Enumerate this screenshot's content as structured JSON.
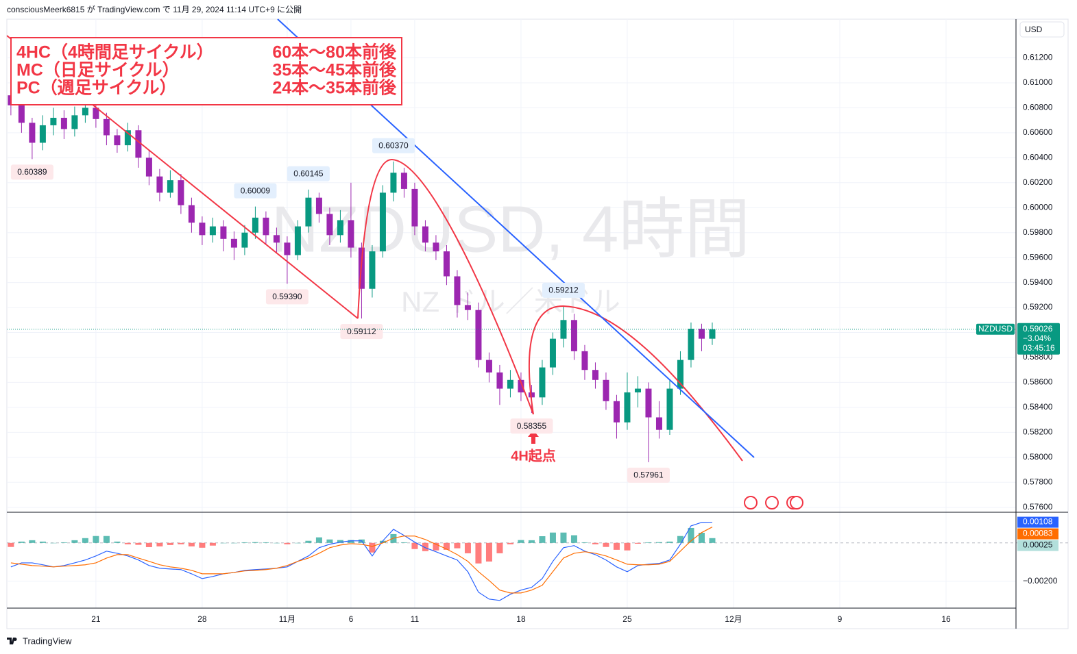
{
  "header": {
    "title": "consciousMeerk6815 が TradingView.com で 11月 29, 2024 11:14 UTC+9 に公開"
  },
  "footer": {
    "brand": "TradingView"
  },
  "chart_data": [
    {
      "type": "candlestick",
      "title": "NZDUSD, 4時間",
      "subtitle": "NZ ドル／米ドル",
      "currency": "USD",
      "colors": {
        "up": "#089981",
        "down": "#9c27b0"
      },
      "x": [
        -4,
        -3.5,
        -3,
        -2.5,
        -2,
        -1.5,
        -1,
        -0.5,
        0,
        0.5,
        1,
        1.5,
        2,
        2.5,
        3,
        3.5,
        4,
        4.5,
        5,
        5.5,
        6,
        6.5,
        7,
        7.5,
        8,
        8.5,
        9,
        9.5,
        10,
        10.5,
        11,
        11.5,
        12,
        12.5,
        13,
        13.5,
        14,
        14.5,
        15,
        15.5,
        16,
        16.5,
        17,
        17.5,
        18,
        18.5,
        19,
        19.5,
        20,
        20.5,
        21,
        21.5,
        22,
        22.5,
        23,
        23.5,
        24,
        24.5,
        25,
        25.5,
        26,
        26.5,
        27,
        27.5,
        28,
        28.5,
        29
      ],
      "open": [
        0.609,
        0.6082,
        0.6068,
        0.6052,
        0.6066,
        0.6072,
        0.6063,
        0.6074,
        0.608,
        0.6071,
        0.6058,
        0.605,
        0.6062,
        0.604,
        0.6025,
        0.6012,
        0.6022,
        0.6002,
        0.5988,
        0.5978,
        0.5985,
        0.5975,
        0.5968,
        0.598,
        0.5992,
        0.5978,
        0.5972,
        0.5962,
        0.5985,
        0.6008,
        0.5995,
        0.5978,
        0.599,
        0.5968,
        0.5935,
        0.5965,
        0.6012,
        0.6028,
        0.6015,
        0.5985,
        0.5972,
        0.5965,
        0.5945,
        0.5922,
        0.5918,
        0.5878,
        0.5868,
        0.5855,
        0.5862,
        0.5852,
        0.5848,
        0.5872,
        0.5895,
        0.591,
        0.5885,
        0.587,
        0.5862,
        0.5845,
        0.5828,
        0.5852,
        0.5855,
        0.5832,
        0.5822,
        0.5855,
        0.5878,
        0.5903,
        0.5895
      ],
      "high": [
        0.6098,
        0.6088,
        0.6072,
        0.6074,
        0.608,
        0.6078,
        0.6081,
        0.6087,
        0.6085,
        0.6076,
        0.6063,
        0.6068,
        0.6066,
        0.6046,
        0.6031,
        0.603,
        0.6027,
        0.6008,
        0.5993,
        0.5992,
        0.599,
        0.5981,
        0.5986,
        0.60009,
        0.5997,
        0.5984,
        0.5977,
        0.599,
        0.60145,
        0.6012,
        0.6,
        0.5998,
        0.602,
        0.5972,
        0.597,
        0.6018,
        0.6037,
        0.6032,
        0.602,
        0.599,
        0.5978,
        0.597,
        0.595,
        0.5932,
        0.5924,
        0.5884,
        0.5874,
        0.587,
        0.5868,
        0.5858,
        0.5878,
        0.59,
        0.59212,
        0.5915,
        0.589,
        0.5876,
        0.5868,
        0.585,
        0.5868,
        0.5865,
        0.586,
        0.5845,
        0.5862,
        0.5885,
        0.5908,
        0.5907,
        0.5908
      ],
      "low": [
        0.6074,
        0.606,
        0.60389,
        0.6046,
        0.6058,
        0.6055,
        0.6057,
        0.6068,
        0.6064,
        0.605,
        0.6044,
        0.6045,
        0.6032,
        0.6018,
        0.6005,
        0.6008,
        0.5995,
        0.598,
        0.597,
        0.5972,
        0.5965,
        0.5958,
        0.5962,
        0.5975,
        0.597,
        0.5964,
        0.5939,
        0.5958,
        0.598,
        0.5988,
        0.597,
        0.5972,
        0.596,
        0.59112,
        0.5928,
        0.596,
        0.6005,
        0.6008,
        0.5978,
        0.5965,
        0.5958,
        0.5938,
        0.5912,
        0.591,
        0.5872,
        0.586,
        0.5842,
        0.5848,
        0.5845,
        0.58355,
        0.5842,
        0.5866,
        0.5888,
        0.5878,
        0.5862,
        0.5855,
        0.5838,
        0.5815,
        0.5822,
        0.584,
        0.57961,
        0.5815,
        0.5818,
        0.585,
        0.5872,
        0.5885,
        0.589
      ],
      "close": [
        0.6082,
        0.6068,
        0.6052,
        0.6066,
        0.6072,
        0.6063,
        0.6074,
        0.608,
        0.6071,
        0.6058,
        0.605,
        0.6062,
        0.604,
        0.6025,
        0.6012,
        0.6022,
        0.6002,
        0.5988,
        0.5978,
        0.5985,
        0.5975,
        0.5968,
        0.598,
        0.5992,
        0.5978,
        0.5972,
        0.5962,
        0.5985,
        0.6008,
        0.5995,
        0.5978,
        0.599,
        0.5968,
        0.5935,
        0.5965,
        0.6012,
        0.6028,
        0.6015,
        0.5985,
        0.5972,
        0.5965,
        0.5945,
        0.5922,
        0.5918,
        0.5878,
        0.5868,
        0.5855,
        0.5862,
        0.5852,
        0.5848,
        0.5872,
        0.5895,
        0.591,
        0.5885,
        0.587,
        0.5862,
        0.5845,
        0.5828,
        0.5852,
        0.5855,
        0.5832,
        0.5822,
        0.5855,
        0.5878,
        0.5903,
        0.5895,
        0.59026
      ],
      "xlim": [
        -4.19,
        43.29
      ],
      "xticks": [
        {
          "value": 0,
          "label": "21"
        },
        {
          "value": 5,
          "label": "28"
        },
        {
          "value": 9,
          "label": "11月"
        },
        {
          "value": 12,
          "label": "6"
        },
        {
          "value": 15,
          "label": "11"
        },
        {
          "value": 20,
          "label": "18"
        },
        {
          "value": 25,
          "label": "25"
        },
        {
          "value": 30,
          "label": "12月"
        },
        {
          "value": 35,
          "label": "9"
        },
        {
          "value": 40,
          "label": "16"
        }
      ],
      "ylim": [
        0.5756,
        0.6151
      ],
      "yticks": [
        {
          "value": 0.576,
          "label": "0.57600"
        },
        {
          "value": 0.578,
          "label": "0.57800"
        },
        {
          "value": 0.58,
          "label": "0.58000"
        },
        {
          "value": 0.582,
          "label": "0.58200"
        },
        {
          "value": 0.584,
          "label": "0.58400"
        },
        {
          "value": 0.586,
          "label": "0.58600"
        },
        {
          "value": 0.588,
          "label": "0.58800"
        },
        {
          "value": 0.59,
          "label": "0.59000"
        },
        {
          "value": 0.592,
          "label": "0.59200"
        },
        {
          "value": 0.594,
          "label": "0.59400"
        },
        {
          "value": 0.596,
          "label": "0.59600"
        },
        {
          "value": 0.598,
          "label": "0.59800"
        },
        {
          "value": 0.6,
          "label": "0.60000"
        },
        {
          "value": 0.602,
          "label": "0.60200"
        },
        {
          "value": 0.604,
          "label": "0.60400"
        },
        {
          "value": 0.606,
          "label": "0.60600"
        },
        {
          "value": 0.608,
          "label": "0.60800"
        },
        {
          "value": 0.61,
          "label": "0.61000"
        },
        {
          "value": 0.612,
          "label": "0.61200"
        }
      ],
      "grid": true,
      "high_labels": [
        {
          "x": 7.5,
          "value": 0.60009,
          "label": "0.60009"
        },
        {
          "x": 10,
          "value": 0.60145,
          "label": "0.60145"
        },
        {
          "x": 14,
          "value": 0.6037,
          "label": "0.60370"
        },
        {
          "x": 22,
          "value": 0.59212,
          "label": "0.59212"
        }
      ],
      "low_labels": [
        {
          "x": -3,
          "value": 0.60389,
          "label": "0.60389"
        },
        {
          "x": 9,
          "value": 0.5939,
          "label": "0.59390"
        },
        {
          "x": 12.5,
          "value": 0.59112,
          "label": "0.59112"
        },
        {
          "x": 20.5,
          "value": 0.58355,
          "label": "0.58355"
        },
        {
          "x": 26,
          "value": 0.57961,
          "label": "0.57961"
        }
      ],
      "last_price": {
        "symbol": "NZDUSD",
        "change": "−3.04%",
        "countdown": "03:45:16"
      },
      "notes": [
        [
          "4HC（4時間足サイクル）",
          "60本〜80本前後"
        ],
        [
          "MC（日足サイクル）",
          "35本〜45本前後"
        ],
        [
          "PC（週足サイクル）",
          "24本〜35本前後"
        ]
      ],
      "callout": "4H起点"
    },
    {
      "type": "macd",
      "ylim": [
        -0.0034,
        0.0016
      ],
      "yticks": [
        {
          "value": -0.002,
          "label": "−0.00200"
        }
      ],
      "series": [
        {
          "color": "#2962ff",
          "values": [
            -0.00125,
            -0.00104,
            -0.00104,
            -0.00114,
            -0.00125,
            -0.00118,
            -0.00104,
            -0.00089,
            -0.00068,
            -0.00043,
            -0.00054,
            -0.00068,
            -0.00089,
            -0.00118,
            -0.00132,
            -0.00136,
            -0.00139,
            -0.00161,
            -0.00186,
            -0.00175,
            -0.00161,
            -0.00154,
            -0.00143,
            -0.00139,
            -0.00136,
            -0.00132,
            -0.00125,
            -0.00096,
            -0.00068,
            -0.00025,
            -7e-05,
            4e-05,
            0.00011,
            0.00011,
            -0.00068,
            0.00011,
            0.00071,
            0.00039,
            4e-05,
            -0.00025,
            -0.00046,
            -0.00068,
            -0.00089,
            -0.0015,
            -0.00257,
            -0.00293,
            -0.003,
            -0.00268,
            -0.00246,
            -0.00232,
            -0.00186,
            -0.00096,
            -0.00025,
            -0.00014,
            -0.00043,
            -0.00061,
            -0.00089,
            -0.00125,
            -0.0015,
            -0.00118,
            -0.00111,
            -0.00107,
            -0.00089,
            -7e-05,
            0.00089,
            0.00107,
            0.00108
          ]
        },
        {
          "color": "#ff6d00",
          "values": [
            -0.00104,
            -0.00111,
            -0.00118,
            -0.00121,
            -0.00125,
            -0.00121,
            -0.00118,
            -0.00114,
            -0.00104,
            -0.00079,
            -0.00061,
            -0.00061,
            -0.00079,
            -0.00096,
            -0.00114,
            -0.00125,
            -0.00132,
            -0.00143,
            -0.00161,
            -0.00161,
            -0.00161,
            -0.00154,
            -0.00146,
            -0.00143,
            -0.00139,
            -0.00132,
            -0.00118,
            -0.00096,
            -0.00079,
            -0.00054,
            -0.00025,
            -0.00011,
            -4e-05,
            -7e-05,
            -0.00018,
            0,
            0.00025,
            0.00036,
            0.00036,
            0.00018,
            -7e-05,
            -0.00032,
            -0.00061,
            -0.00096,
            -0.0015,
            -0.00196,
            -0.00246,
            -0.00261,
            -0.00261,
            -0.00246,
            -0.00221,
            -0.0015,
            -0.00079,
            -0.00054,
            -0.00046,
            -0.00054,
            -0.00068,
            -0.00089,
            -0.00111,
            -0.00114,
            -0.00114,
            -0.00111,
            -0.00096,
            -0.00043,
            0.00011,
            0.00054,
            0.00083
          ]
        }
      ],
      "histogram": {
        "up_color": "#26a69a",
        "down_color": "#ff5252",
        "values": [
          -0.00021,
          7e-05,
          0.00014,
          7e-05,
          0,
          3e-05,
          0.00014,
          0.00025,
          0.00036,
          0.00036,
          7e-05,
          -7e-05,
          -0.0001,
          -0.00022,
          -0.00018,
          -0.00011,
          -7e-05,
          -0.00018,
          -0.00025,
          -0.00014,
          0,
          0,
          3e-05,
          4e-05,
          3e-05,
          0,
          -7e-05,
          0,
          0.00011,
          0.00029,
          0.00018,
          0.00015,
          0.00015,
          0.00018,
          -0.0005,
          0.00011,
          0.00046,
          3e-05,
          -0.00032,
          -0.00043,
          -0.00039,
          -0.00036,
          -0.00028,
          -0.00054,
          -0.00107,
          -0.00097,
          -0.00054,
          -7e-05,
          0.00015,
          0.00014,
          0.00035,
          0.00054,
          0.00054,
          0.0004,
          3e-05,
          -7e-05,
          -0.00021,
          -0.00036,
          -0.00039,
          -4e-05,
          3e-05,
          4e-05,
          7e-05,
          0.00036,
          0.00078,
          0.00053,
          0.00025
        ]
      }
    }
  ]
}
